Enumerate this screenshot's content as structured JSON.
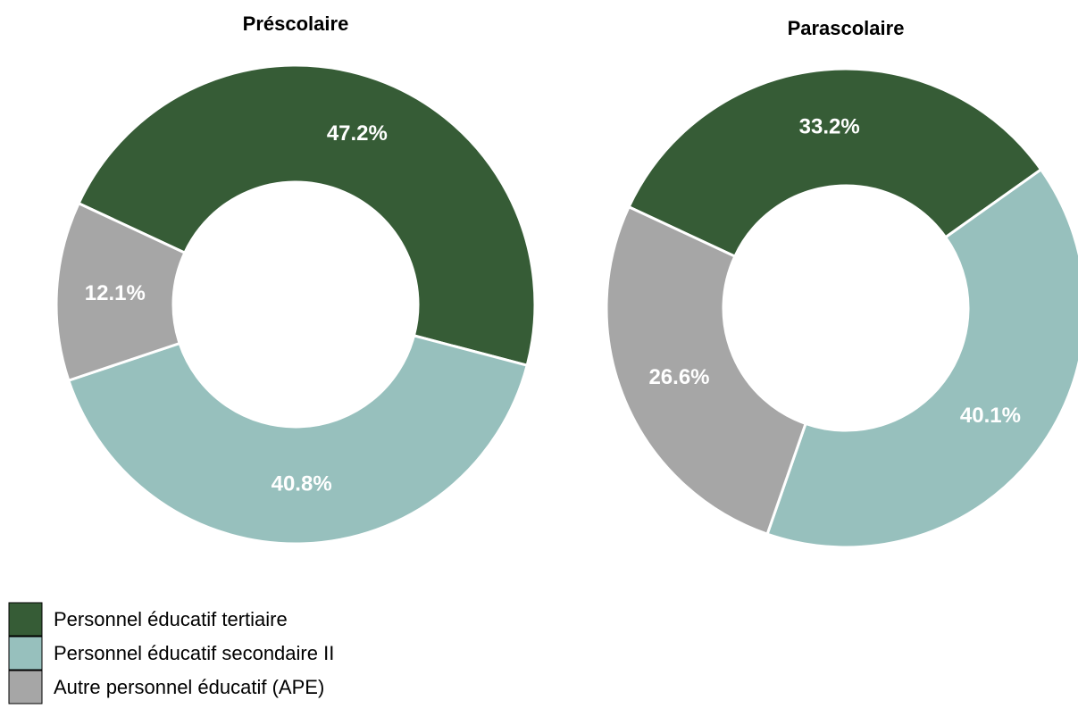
{
  "chart_data": [
    {
      "type": "pie",
      "title": "Préscolaire",
      "values": [
        47.2,
        40.8,
        12.1
      ],
      "value_labels": [
        "47.2%",
        "40.8%",
        "12.1%"
      ]
    },
    {
      "type": "pie",
      "title": "Parascolaire",
      "values": [
        33.2,
        40.1,
        26.6
      ],
      "value_labels": [
        "33.2%",
        "40.1%",
        "26.6%"
      ]
    }
  ],
  "legend": {
    "labels": [
      "Personnel éducatif tertiaire",
      "Personnel éducatif secondaire II",
      "Autre personnel éducatif (APE)"
    ],
    "colors": [
      "#365c36",
      "#97c0bd",
      "#a6a6a6"
    ]
  }
}
